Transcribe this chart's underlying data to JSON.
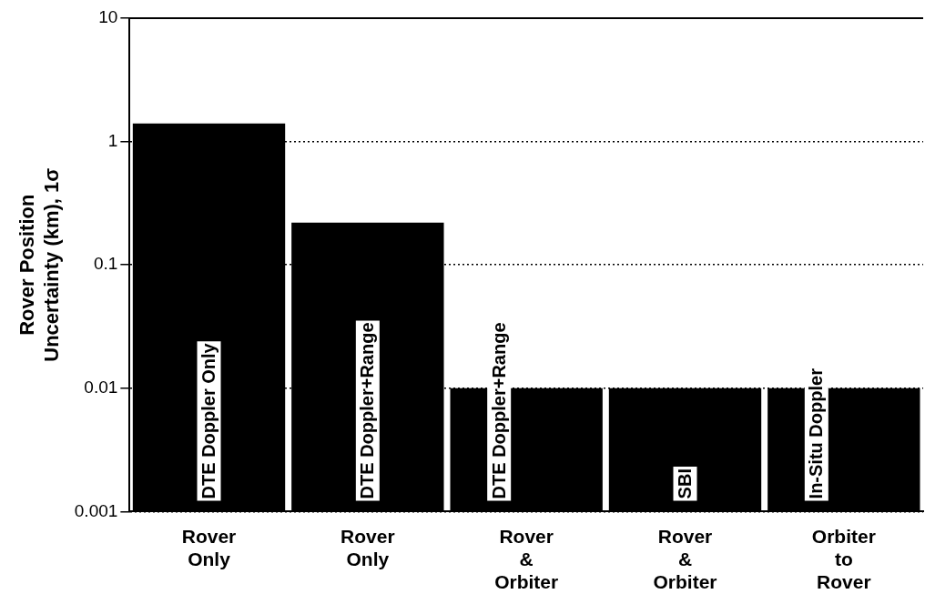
{
  "chart_data": {
    "type": "bar",
    "ylabel": "Rover Position Uncertainty (km), 1σ",
    "categories": [
      "Rover Only",
      "Rover Only",
      "Rover & Orbiter",
      "Rover & Orbiter",
      "Orbiter to Rover"
    ],
    "values": [
      1.4,
      0.22,
      0.01,
      0.01,
      0.01
    ],
    "color": "#000000",
    "log": "y",
    "ylim": [
      0.001,
      10
    ],
    "yticks": [
      0.001,
      0.01,
      0.1,
      1,
      10
    ],
    "grid": "y",
    "annotations": [
      "DTE Doppler Only",
      "DTE Doppler+Range",
      "DTE Doppler+Range",
      "SBI",
      "In-Situ Doppler"
    ]
  }
}
